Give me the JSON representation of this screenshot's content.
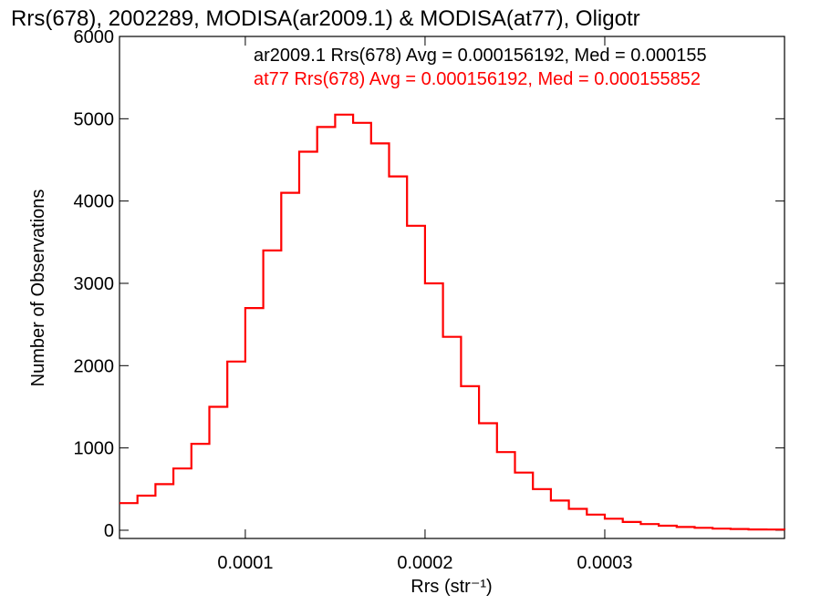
{
  "chart_data": {
    "type": "histogram",
    "title": "Rrs(678), 2002289, MODISA(ar2009.1) & MODISA(at77), Oligotr",
    "xlabel": "Rrs (str⁻¹)",
    "ylabel": "Number of Observations",
    "xlim": [
      3e-05,
      0.0004
    ],
    "ylim": [
      -100,
      6000
    ],
    "x_ticks": [
      {
        "value": 0.0001,
        "label": "0.0001"
      },
      {
        "value": 0.0002,
        "label": "0.0002"
      },
      {
        "value": 0.0003,
        "label": "0.0003"
      }
    ],
    "y_ticks": [
      {
        "value": 0,
        "label": "0"
      },
      {
        "value": 1000,
        "label": "1000"
      },
      {
        "value": 2000,
        "label": "2000"
      },
      {
        "value": 3000,
        "label": "3000"
      },
      {
        "value": 4000,
        "label": "4000"
      },
      {
        "value": 5000,
        "label": "5000"
      },
      {
        "value": 6000,
        "label": "6000"
      }
    ],
    "annotations": [
      {
        "text": "ar2009.1 Rrs(678) Avg = 0.000156192, Med = 0.000155",
        "color": "#000000"
      },
      {
        "text": "at77 Rrs(678) Avg = 0.000156192, Med = 0.000155852",
        "color": "#ff0000"
      }
    ],
    "series": [
      {
        "color": "#000000",
        "x": [
          3e-05,
          4e-05,
          5e-05,
          6e-05,
          7e-05,
          8e-05,
          9e-05,
          0.0001,
          0.00011,
          0.00012,
          0.00013,
          0.00014,
          0.00015,
          0.000155,
          0.00016,
          0.00017,
          0.00018,
          0.00019,
          0.0002,
          0.00021,
          0.00022,
          0.00023,
          0.00024,
          0.00025,
          0.00026,
          0.00027,
          0.00028,
          0.00029,
          0.0003,
          0.00031,
          0.00032,
          0.00033,
          0.00034,
          0.00035,
          0.00036,
          0.00037,
          0.00038,
          0.00039,
          0.0004
        ],
        "values": [
          330,
          420,
          560,
          750,
          1050,
          1500,
          2050,
          2700,
          3400,
          4100,
          4600,
          4900,
          5050,
          5050,
          4950,
          4700,
          4300,
          3700,
          3000,
          2350,
          1750,
          1300,
          950,
          700,
          500,
          360,
          260,
          190,
          140,
          100,
          75,
          55,
          40,
          30,
          20,
          15,
          10,
          8,
          5
        ]
      },
      {
        "color": "#ff0000",
        "x": [
          3e-05,
          4e-05,
          5e-05,
          6e-05,
          7e-05,
          8e-05,
          9e-05,
          0.0001,
          0.00011,
          0.00012,
          0.00013,
          0.00014,
          0.00015,
          0.000155,
          0.00016,
          0.00017,
          0.00018,
          0.00019,
          0.0002,
          0.00021,
          0.00022,
          0.00023,
          0.00024,
          0.00025,
          0.00026,
          0.00027,
          0.00028,
          0.00029,
          0.0003,
          0.00031,
          0.00032,
          0.00033,
          0.00034,
          0.00035,
          0.00036,
          0.00037,
          0.00038,
          0.00039,
          0.0004
        ],
        "values": [
          330,
          420,
          560,
          750,
          1050,
          1500,
          2050,
          2700,
          3400,
          4100,
          4600,
          4900,
          5050,
          5050,
          4950,
          4700,
          4300,
          3700,
          3000,
          2350,
          1750,
          1300,
          950,
          700,
          500,
          360,
          260,
          190,
          140,
          100,
          75,
          55,
          40,
          30,
          20,
          15,
          10,
          8,
          5
        ]
      }
    ]
  }
}
